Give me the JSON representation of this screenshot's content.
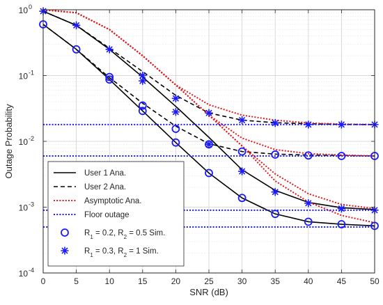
{
  "chart_data": {
    "type": "line",
    "xlabel": "SNR (dB)",
    "ylabel": "Outage Probability",
    "xlim": [
      0,
      50
    ],
    "ylim": [
      0.0001,
      1
    ],
    "yscale": "log",
    "grid": true,
    "legend_position": "bottom-left",
    "x_ticks": [
      {
        "value": 0,
        "label": "0"
      },
      {
        "value": 5,
        "label": "5"
      },
      {
        "value": 10,
        "label": "10"
      },
      {
        "value": 15,
        "label": "15"
      },
      {
        "value": 20,
        "label": "20"
      },
      {
        "value": 25,
        "label": "25"
      },
      {
        "value": 30,
        "label": "30"
      },
      {
        "value": 35,
        "label": "35"
      },
      {
        "value": 40,
        "label": "40"
      },
      {
        "value": 45,
        "label": "45"
      },
      {
        "value": 50,
        "label": "50"
      }
    ],
    "y_ticks": [
      {
        "value": 1,
        "base": "10",
        "exp": "0"
      },
      {
        "value": 0.1,
        "base": "10",
        "exp": "-1"
      },
      {
        "value": 0.01,
        "base": "10",
        "exp": "-2"
      },
      {
        "value": 0.001,
        "base": "10",
        "exp": "-3"
      },
      {
        "value": 0.0001,
        "base": "10",
        "exp": "-4"
      }
    ],
    "x": [
      0,
      5,
      10,
      15,
      20,
      25,
      30,
      35,
      40,
      45,
      50
    ],
    "series": [
      {
        "name": "User 1 Ana.",
        "style": "solid",
        "color": "#000000",
        "case": "R1=0.3,R2=1",
        "values": [
          0.95,
          0.58,
          0.25,
          0.095,
          0.034,
          0.0115,
          0.0037,
          0.0018,
          0.00118,
          0.00098,
          0.00092
        ]
      },
      {
        "name": "User 1 Ana.",
        "style": "solid",
        "color": "#000000",
        "case": "R1=0.2,R2=0.5",
        "values": [
          0.6,
          0.25,
          0.087,
          0.029,
          0.0096,
          0.0033,
          0.00138,
          0.00079,
          0.0006,
          0.00055,
          0.00052
        ]
      },
      {
        "name": "User 2 Ana.",
        "style": "dashed",
        "color": "#000000",
        "case": "R1=0.3,R2=1",
        "values": [
          0.95,
          0.58,
          0.26,
          0.115,
          0.05,
          0.027,
          0.021,
          0.0192,
          0.0185,
          0.0181,
          0.018
        ]
      },
      {
        "name": "User 2 Ana.",
        "style": "dashed",
        "color": "#000000",
        "case": "R1=0.2,R2=0.5",
        "values": [
          0.6,
          0.25,
          0.093,
          0.038,
          0.017,
          0.0092,
          0.007,
          0.0064,
          0.0062,
          0.0061,
          0.006
        ]
      },
      {
        "name": "Asymptotic Ana.",
        "style": "dotted",
        "color": "#e3181b",
        "case": "U2 R1=0.3,R2=1",
        "values": [
          1.0,
          0.9,
          0.5,
          0.2,
          0.072,
          0.036,
          0.025,
          0.021,
          0.019,
          0.0183,
          0.018
        ]
      },
      {
        "name": "Asymptotic Ana.",
        "style": "dotted",
        "color": "#e3181b",
        "case": "U1 R1=0.3,R2=1",
        "values": [
          1.0,
          0.9,
          0.5,
          0.2,
          0.072,
          0.025,
          0.0085,
          0.0032,
          0.0016,
          0.0011,
          0.00095
        ]
      },
      {
        "name": "Asymptotic Ana.",
        "style": "dotted",
        "color": "#e3181b",
        "case": "U2 R1=0.2,R2=0.5",
        "values": [
          1.0,
          0.9,
          0.5,
          0.2,
          0.072,
          0.025,
          0.0112,
          0.0075,
          0.0065,
          0.0062,
          0.006
        ]
      },
      {
        "name": "Asymptotic Ana.",
        "style": "dotted",
        "color": "#e3181b",
        "case": "U1 R1=0.2,R2=0.5",
        "values": [
          1.0,
          0.9,
          0.5,
          0.2,
          0.072,
          0.025,
          0.0085,
          0.0025,
          0.0012,
          0.00075,
          0.00058
        ]
      },
      {
        "name": "Floor outage",
        "style": "dotted",
        "color": "#1a1aff",
        "values_const": 0.018
      },
      {
        "name": "Floor outage",
        "style": "dotted",
        "color": "#1a1aff",
        "values_const": 0.006
      },
      {
        "name": "Floor outage",
        "style": "dotted",
        "color": "#1a1aff",
        "values_const": 0.0009
      },
      {
        "name": "Floor outage",
        "style": "dotted",
        "color": "#1a1aff",
        "values_const": 0.0005
      },
      {
        "name": "R1 = 0.2, R2 = 0.5 Sim.",
        "marker": "circle",
        "color": "#1a1aff",
        "points": [
          {
            "x": 0,
            "y": 0.6
          },
          {
            "x": 5,
            "y": 0.25
          },
          {
            "x": 10,
            "y": 0.095
          },
          {
            "x": 10,
            "y": 0.087
          },
          {
            "x": 15,
            "y": 0.035
          },
          {
            "x": 15,
            "y": 0.029
          },
          {
            "x": 20,
            "y": 0.0155
          },
          {
            "x": 20,
            "y": 0.0096
          },
          {
            "x": 25,
            "y": 0.009
          },
          {
            "x": 25,
            "y": 0.0033
          },
          {
            "x": 30,
            "y": 0.007
          },
          {
            "x": 30,
            "y": 0.00138
          },
          {
            "x": 35,
            "y": 0.0063
          },
          {
            "x": 35,
            "y": 0.00079
          },
          {
            "x": 40,
            "y": 0.0061
          },
          {
            "x": 40,
            "y": 0.0006
          },
          {
            "x": 45,
            "y": 0.006
          },
          {
            "x": 45,
            "y": 0.00055
          },
          {
            "x": 50,
            "y": 0.006
          },
          {
            "x": 50,
            "y": 0.00052
          }
        ]
      },
      {
        "name": "R1 = 0.3, R2 = 1 Sim.",
        "marker": "asterisk",
        "color": "#1a1aff",
        "points": [
          {
            "x": 0,
            "y": 0.95
          },
          {
            "x": 5,
            "y": 0.58
          },
          {
            "x": 10,
            "y": 0.25
          },
          {
            "x": 15,
            "y": 0.1
          },
          {
            "x": 15,
            "y": 0.083
          },
          {
            "x": 20,
            "y": 0.045
          },
          {
            "x": 20,
            "y": 0.028
          },
          {
            "x": 25,
            "y": 0.027
          },
          {
            "x": 25,
            "y": 0.009
          },
          {
            "x": 30,
            "y": 0.021
          },
          {
            "x": 30,
            "y": 0.0035
          },
          {
            "x": 35,
            "y": 0.019
          },
          {
            "x": 35,
            "y": 0.0017
          },
          {
            "x": 40,
            "y": 0.018
          },
          {
            "x": 40,
            "y": 0.00115
          },
          {
            "x": 45,
            "y": 0.018
          },
          {
            "x": 45,
            "y": 0.00095
          },
          {
            "x": 50,
            "y": 0.018
          },
          {
            "x": 50,
            "y": 0.0009
          }
        ]
      }
    ],
    "legend": [
      {
        "label": "User 1 Ana.",
        "kind": "line",
        "style": "solid",
        "color": "#000000"
      },
      {
        "label": "User 2 Ana.",
        "kind": "line",
        "style": "dashed",
        "color": "#000000"
      },
      {
        "label": "Asymptotic Ana.",
        "kind": "line",
        "style": "dotted",
        "color": "#e3181b"
      },
      {
        "label": "Floor outage",
        "kind": "line",
        "style": "dotted",
        "color": "#1a1aff"
      },
      {
        "kind": "circle",
        "color": "#1a1aff",
        "parts": [
          {
            "t": "R"
          },
          {
            "t": "1",
            "sub": true
          },
          {
            "t": " = 0.2, R"
          },
          {
            "t": "2",
            "sub": true
          },
          {
            "t": " = 0.5 Sim."
          }
        ]
      },
      {
        "kind": "asterisk",
        "color": "#1a1aff",
        "parts": [
          {
            "t": "R"
          },
          {
            "t": "1",
            "sub": true
          },
          {
            "t": " = 0.3, R"
          },
          {
            "t": "2",
            "sub": true
          },
          {
            "t": " = 1 Sim."
          }
        ]
      }
    ]
  }
}
